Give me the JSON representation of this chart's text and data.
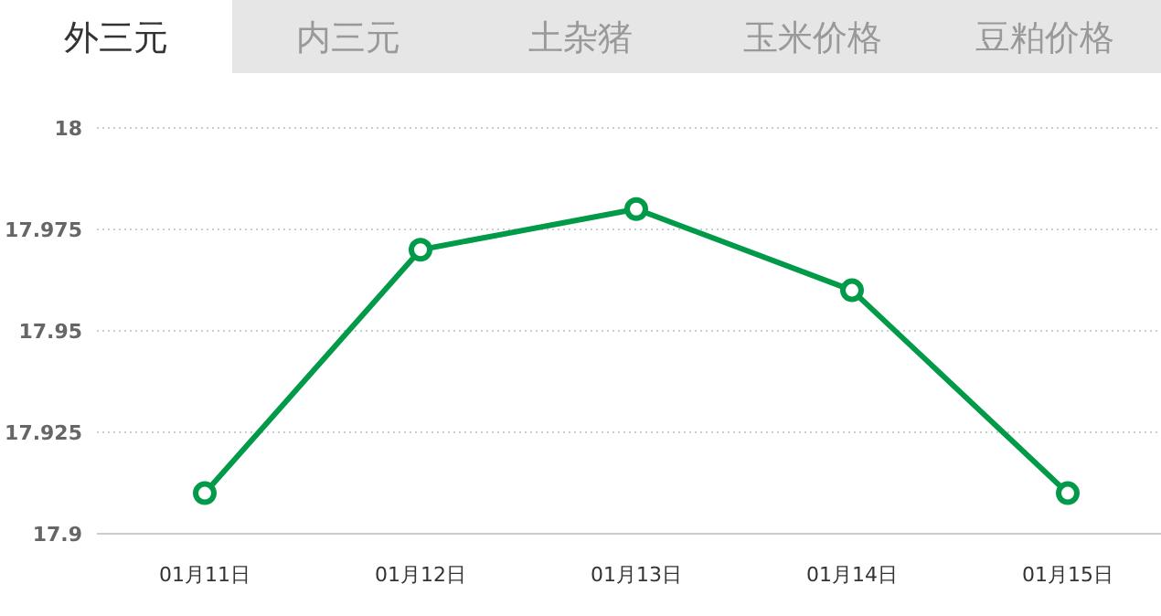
{
  "chart_data": {
    "type": "line",
    "title": "外三元",
    "annotations": [
      "内三元",
      "土杂猪",
      "玉米价格",
      "豆粕价格"
    ],
    "categories": [
      "01月11日",
      "01月12日",
      "01月13日",
      "01月14日",
      "01月15日"
    ],
    "series": [
      {
        "color": "#009a49",
        "values": [
          17.91,
          17.97,
          17.98,
          17.96,
          17.91
        ]
      }
    ],
    "ylim": [
      17.9,
      18
    ],
    "yticks": [
      17.9,
      17.925,
      17.95,
      17.975,
      18
    ],
    "grid": "y",
    "marker": "circle",
    "line_style": "solid"
  }
}
